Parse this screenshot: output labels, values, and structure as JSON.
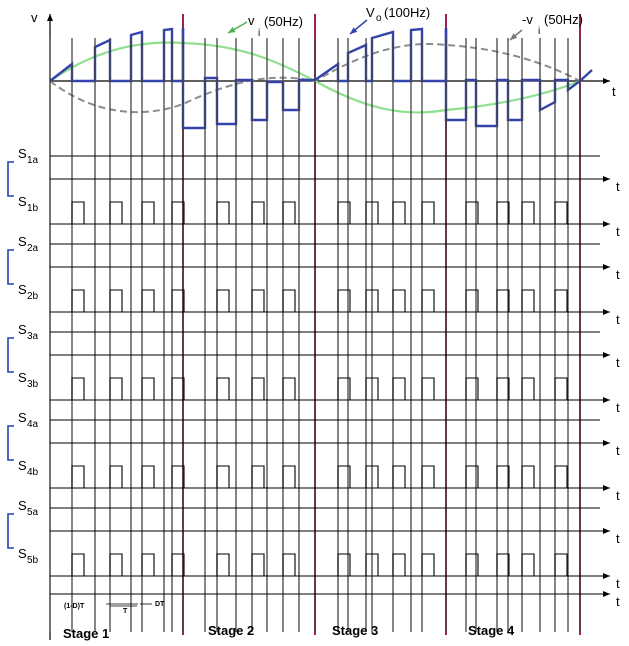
{
  "axes": {
    "v_label": "v",
    "t_label": "t"
  },
  "waveforms": {
    "vi_label": "v",
    "vi_sub": "i",
    "vi_freq": "(50Hz)",
    "vo_label": "V",
    "vo_sub": "o",
    "vo_freq": "(100Hz)",
    "neg_vi_label": "-v",
    "neg_vi_sub": "i",
    "neg_vi_freq": "(50Hz)",
    "colors": {
      "vo": "#3344aa",
      "vi": "#8fe08f",
      "neg_vi": "#8c8c8c",
      "stage_line": "#a0205a"
    }
  },
  "signals": [
    {
      "main": "S",
      "sub": "1a"
    },
    {
      "main": "S",
      "sub": "1b"
    },
    {
      "main": "S",
      "sub": "2a"
    },
    {
      "main": "S",
      "sub": "2b"
    },
    {
      "main": "S",
      "sub": "3a"
    },
    {
      "main": "S",
      "sub": "3b"
    },
    {
      "main": "S",
      "sub": "4a"
    },
    {
      "main": "S",
      "sub": "4b"
    },
    {
      "main": "S",
      "sub": "5a"
    },
    {
      "main": "S",
      "sub": "5b"
    }
  ],
  "stages": [
    "Stage 1",
    "Stage 2",
    "Stage 3",
    "Stage 4"
  ],
  "timing_annotation": {
    "off_label": "(1-D)T",
    "period_label": "T",
    "on_label": "DT"
  }
}
